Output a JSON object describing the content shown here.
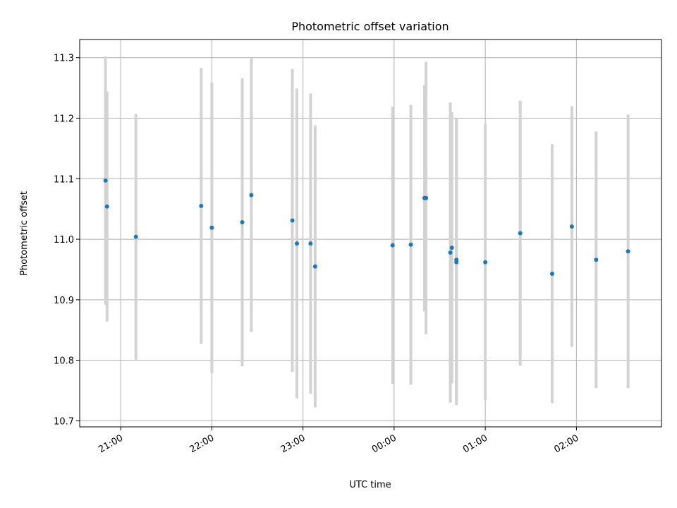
{
  "chart_data": {
    "type": "scatter",
    "title": "Photometric offset variation",
    "xlabel": "UTC time",
    "ylabel": "Photometric offset",
    "xlim": [
      "20:33",
      "02:56"
    ],
    "ylim": [
      10.69,
      11.33
    ],
    "grid": true,
    "x_ticks": [
      "21:00",
      "22:00",
      "23:00",
      "00:00",
      "01:00",
      "02:00"
    ],
    "y_ticks": [
      "10.7",
      "10.8",
      "10.9",
      "11.0",
      "11.1",
      "11.2",
      "11.3"
    ],
    "colors": {
      "point": "#1f77b4",
      "errorbar": "#d3d3d3",
      "grid": "#b0b0b0"
    },
    "series": [
      {
        "x": [
          "20:50",
          "20:51",
          "21:10",
          "21:53",
          "22:00",
          "22:20",
          "22:26",
          "22:53",
          "22:56",
          "23:05",
          "23:08",
          "23:59",
          "00:11",
          "00:20",
          "00:21",
          "00:37",
          "00:38",
          "00:41",
          "00:41",
          "01:00",
          "01:23",
          "01:44",
          "01:57",
          "02:13",
          "02:34"
        ],
        "y": [
          11.097,
          11.054,
          11.004,
          11.055,
          11.019,
          11.028,
          11.073,
          11.031,
          10.993,
          10.993,
          10.955,
          10.99,
          10.991,
          11.068,
          11.068,
          10.978,
          10.986,
          10.966,
          10.962,
          10.962,
          11.01,
          10.943,
          11.021,
          10.966,
          10.98
        ],
        "err": [
          0.205,
          0.19,
          0.203,
          0.228,
          0.24,
          0.238,
          0.226,
          0.25,
          0.256,
          0.248,
          0.233,
          0.229,
          0.231,
          0.187,
          0.225,
          0.248,
          0.224,
          0.234,
          0.236,
          0.228,
          0.219,
          0.214,
          0.199,
          0.212,
          0.226
        ]
      }
    ]
  }
}
